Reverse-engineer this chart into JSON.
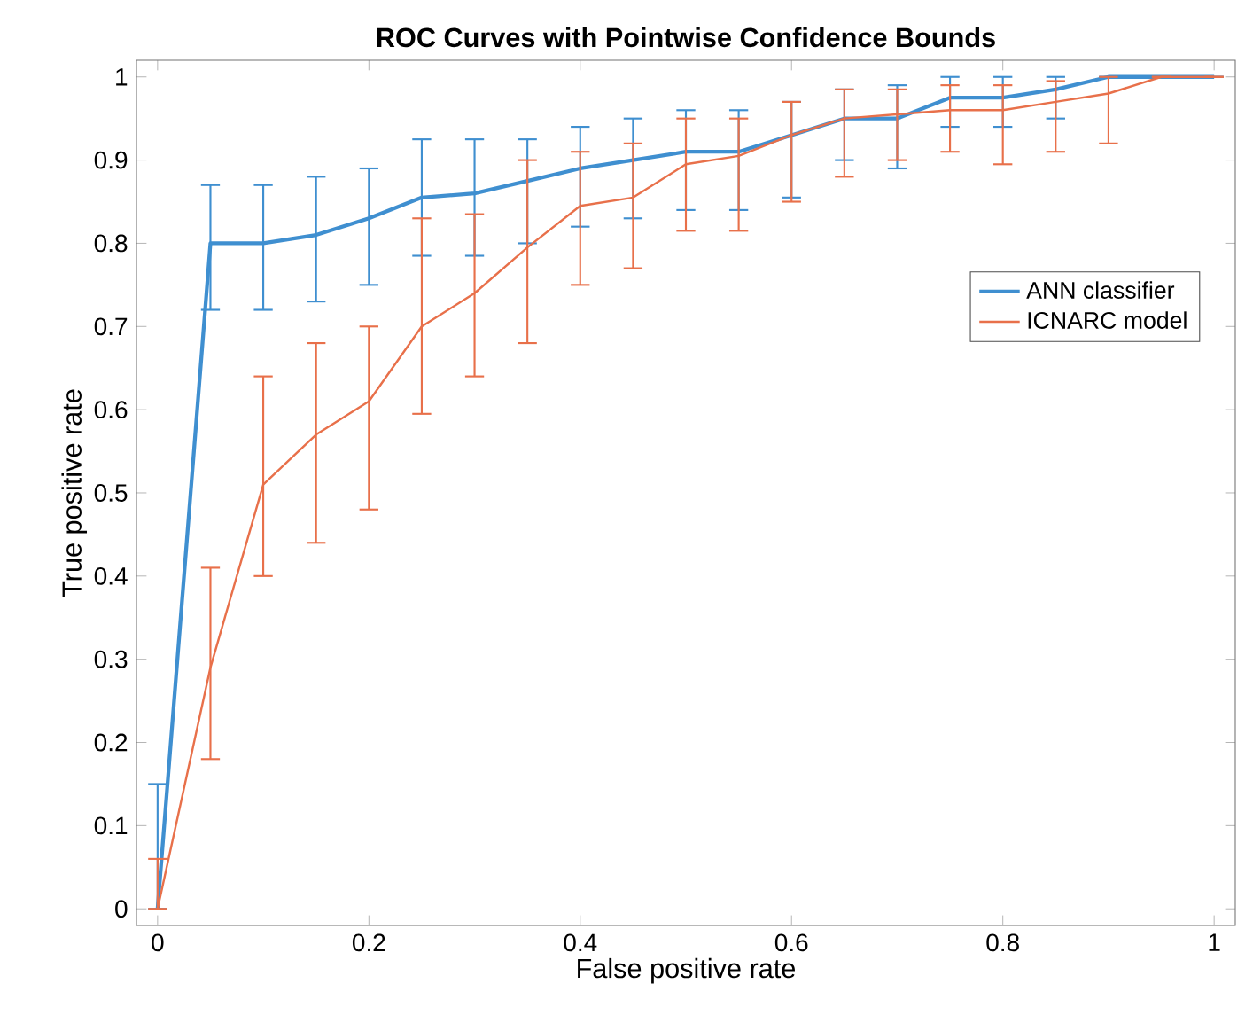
{
  "chart_data": {
    "type": "line",
    "title": "ROC Curves with Pointwise Confidence Bounds",
    "xlabel": "False positive rate",
    "ylabel": "True positive rate",
    "x": [
      0,
      0.05,
      0.1,
      0.15,
      0.2,
      0.25,
      0.3,
      0.35,
      0.4,
      0.45,
      0.5,
      0.55,
      0.6,
      0.65,
      0.7,
      0.75,
      0.8,
      0.85,
      0.9,
      0.95,
      1
    ],
    "series": [
      {
        "name": "ANN classifier",
        "color": "#3f8fd0",
        "values": [
          0,
          0.8,
          0.8,
          0.81,
          0.83,
          0.855,
          0.86,
          0.875,
          0.89,
          0.9,
          0.91,
          0.91,
          0.93,
          0.95,
          0.95,
          0.975,
          0.975,
          0.985,
          1,
          1,
          1
        ],
        "errors": [
          [
            0,
            0.15
          ],
          [
            0.72,
            0.87
          ],
          [
            0.72,
            0.87
          ],
          [
            0.73,
            0.88
          ],
          [
            0.75,
            0.89
          ],
          [
            0.785,
            0.925
          ],
          [
            0.785,
            0.925
          ],
          [
            0.8,
            0.925
          ],
          [
            0.82,
            0.94
          ],
          [
            0.83,
            0.95
          ],
          [
            0.84,
            0.96
          ],
          [
            0.84,
            0.96
          ],
          [
            0.855,
            0.97
          ],
          [
            0.9,
            0.985
          ],
          [
            0.89,
            0.99
          ],
          [
            0.94,
            1
          ],
          [
            0.94,
            1
          ],
          [
            0.95,
            1
          ],
          [
            1,
            1
          ],
          [
            1,
            1
          ],
          [
            1,
            1
          ]
        ]
      },
      {
        "name": "ICNARC model",
        "color": "#e8704a",
        "values": [
          0,
          0.29,
          0.51,
          0.57,
          0.61,
          0.7,
          0.74,
          0.795,
          0.845,
          0.855,
          0.895,
          0.905,
          0.93,
          0.95,
          0.955,
          0.96,
          0.96,
          0.97,
          0.98,
          1,
          1
        ],
        "errors": [
          [
            0,
            0.06
          ],
          [
            0.18,
            0.41
          ],
          [
            0.4,
            0.64
          ],
          [
            0.44,
            0.68
          ],
          [
            0.48,
            0.7
          ],
          [
            0.595,
            0.83
          ],
          [
            0.64,
            0.835
          ],
          [
            0.68,
            0.9
          ],
          [
            0.75,
            0.91
          ],
          [
            0.77,
            0.92
          ],
          [
            0.815,
            0.95
          ],
          [
            0.815,
            0.95
          ],
          [
            0.85,
            0.97
          ],
          [
            0.88,
            0.985
          ],
          [
            0.9,
            0.985
          ],
          [
            0.91,
            0.99
          ],
          [
            0.895,
            0.99
          ],
          [
            0.91,
            0.995
          ],
          [
            0.92,
            1
          ],
          [
            1,
            1
          ],
          [
            1,
            1
          ]
        ]
      }
    ],
    "xlim": [
      -0.02,
      1.02
    ],
    "ylim": [
      -0.02,
      1.02
    ],
    "xticks": [
      0,
      0.2,
      0.4,
      0.6,
      0.8,
      1
    ],
    "yticks": [
      0,
      0.1,
      0.2,
      0.3,
      0.4,
      0.5,
      0.6,
      0.7,
      0.8,
      0.9,
      1
    ],
    "grid": false,
    "legend": "right",
    "marker": "none",
    "line_style": "solid"
  }
}
